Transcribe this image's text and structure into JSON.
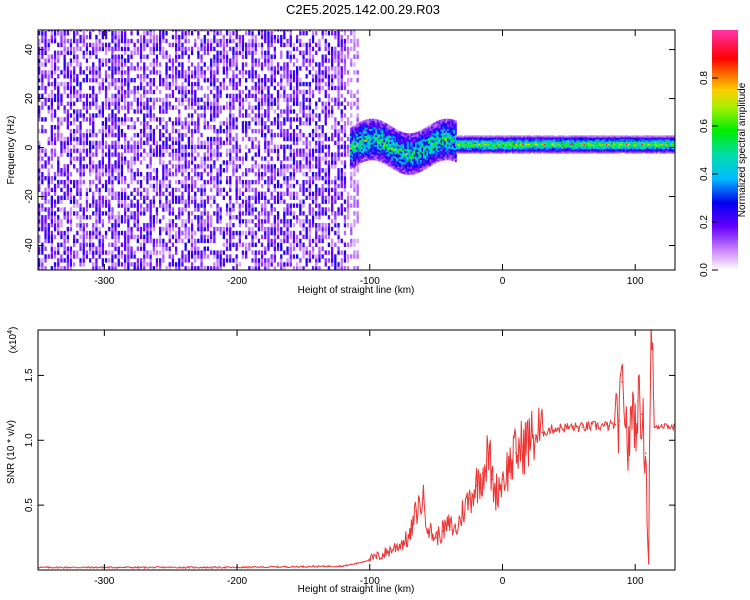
{
  "title": "C2E5.2025.142.00.29.R03",
  "chart_data": [
    {
      "type": "heatmap",
      "xlabel": "Height of straight line (km)",
      "ylabel": "Frequency (Hz)",
      "xlim": [
        -350,
        130
      ],
      "ylim": [
        -50,
        48
      ],
      "x_ticks": [
        -300,
        -200,
        -100,
        0,
        100
      ],
      "y_ticks": [
        -40,
        -20,
        0,
        20,
        40
      ],
      "colorbar": {
        "label": "Normalized spectral amplitude",
        "range": [
          0,
          1
        ],
        "ticks": [
          "0.0",
          "0.2",
          "0.4",
          "0.6",
          "0.8"
        ]
      },
      "features": [
        {
          "kind": "broadband noise",
          "x_range": [
            -350,
            -110
          ],
          "freq_range": [
            -50,
            48
          ],
          "amplitude": 0.2
        },
        {
          "kind": "signal band",
          "x_range": [
            -115,
            -35
          ],
          "freq_center": 0,
          "freq_halfwidth": 8,
          "amplitude": 0.45
        },
        {
          "kind": "narrow carrier",
          "x_range": [
            -35,
            130
          ],
          "freq_center": 1,
          "freq_halfwidth": 2,
          "amplitude": 0.55
        }
      ],
      "grid": false
    },
    {
      "type": "line",
      "xlabel": "Height of straight line (km)",
      "ylabel": "SNR (10 * v/v)",
      "y_multiplier": "(x10",
      "y_multiplier_exp": "4",
      "xlim": [
        -350,
        130
      ],
      "ylim": [
        0,
        1.85
      ],
      "x_ticks": [
        -300,
        -200,
        -100,
        0,
        100
      ],
      "y_ticks": [
        "0.5",
        "1.0",
        "1.5"
      ],
      "series_color": "#ee3333",
      "series": [
        {
          "x": [
            -350,
            -300,
            -200,
            -120,
            -110,
            -100,
            -90,
            -80,
            -70,
            -65,
            -60,
            -55,
            -50,
            -45,
            -40,
            -35,
            -30,
            -25,
            -20,
            -15,
            -12,
            -10,
            -8,
            -5,
            0,
            5,
            10,
            15,
            20,
            25,
            30,
            35,
            40,
            50,
            60,
            70,
            80,
            85,
            88,
            90,
            93,
            95,
            98,
            100,
            102,
            105,
            108,
            110,
            112,
            115,
            120,
            125,
            130
          ],
          "y": [
            0.02,
            0.02,
            0.02,
            0.03,
            0.05,
            0.08,
            0.12,
            0.18,
            0.25,
            0.45,
            0.55,
            0.3,
            0.25,
            0.3,
            0.35,
            0.3,
            0.45,
            0.55,
            0.65,
            0.75,
            0.85,
            0.9,
            0.7,
            0.6,
            0.7,
            0.8,
            0.9,
            0.95,
            1.0,
            1.04,
            1.06,
            1.08,
            1.09,
            1.1,
            1.1,
            1.11,
            1.11,
            1.12,
            1.15,
            1.45,
            1.2,
            0.85,
            1.35,
            1.1,
            1.3,
            1.2,
            0.9,
            0.05,
            1.85,
            1.1,
            1.12,
            1.11,
            1.1
          ]
        }
      ],
      "grid": false
    }
  ]
}
